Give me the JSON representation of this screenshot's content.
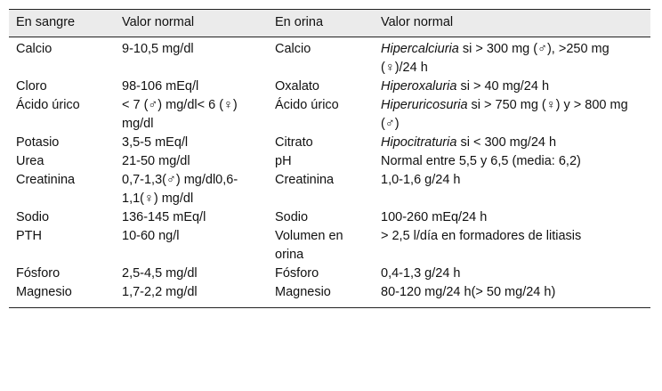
{
  "headers": [
    "En sangre",
    "Valor normal",
    "En orina",
    "Valor normal"
  ],
  "rows": [
    {
      "blood": "Calcio",
      "blood_value": "9-10,5 mg/dl",
      "urine": "Calcio",
      "urine_em": "Hipercalciuria",
      "urine_value": " si > 300 mg (♂), >250 mg (♀)/24 h"
    },
    {
      "blood": "Cloro",
      "blood_value": "98-106 mEq/l",
      "urine": "Oxalato",
      "urine_em": "Hiperoxaluria",
      "urine_value": " si > 40 mg/24 h"
    },
    {
      "blood": "Ácido úrico",
      "blood_value": "< 7 (♂) mg/dl< 6 (♀) mg/dl",
      "urine": "Ácido úrico",
      "urine_em": "Hiperuricosuria",
      "urine_value": " si > 750 mg (♀) y > 800 mg (♂)"
    },
    {
      "blood": "Potasio",
      "blood_value": "3,5-5 mEq/l",
      "urine": "Citrato",
      "urine_em": "Hipocitraturia",
      "urine_value": " si < 300 mg/24 h"
    },
    {
      "blood": "Urea",
      "blood_value": "21-50 mg/dl",
      "urine": "pH",
      "urine_em": "",
      "urine_value": "Normal entre 5,5 y 6,5 (media: 6,2)"
    },
    {
      "blood": "Creatinina",
      "blood_value": "0,7-1,3(♂) mg/dl0,6-1,1(♀) mg/dl",
      "urine": "Creatinina",
      "urine_em": "",
      "urine_value": "1,0-1,6 g/24 h"
    },
    {
      "blood": "Sodio",
      "blood_value": "136-145 mEq/l",
      "urine": "Sodio",
      "urine_em": "",
      "urine_value": "100-260 mEq/24 h"
    },
    {
      "blood": "PTH",
      "blood_value": "10-60 ng/l",
      "urine": "Volumen en orina",
      "urine_em": "",
      "urine_value": "> 2,5 l/día en formadores de litiasis"
    },
    {
      "blood": "Fósforo",
      "blood_value": "2,5-4,5 mg/dl",
      "urine": "Fósforo",
      "urine_em": "",
      "urine_value": "0,4-1,3 g/24 h"
    },
    {
      "blood": "Magnesio",
      "blood_value": "1,7-2,2 mg/dl",
      "urine": "Magnesio",
      "urine_em": "",
      "urine_value": "80-120 mg/24 h(> 50 mg/24 h)"
    }
  ]
}
